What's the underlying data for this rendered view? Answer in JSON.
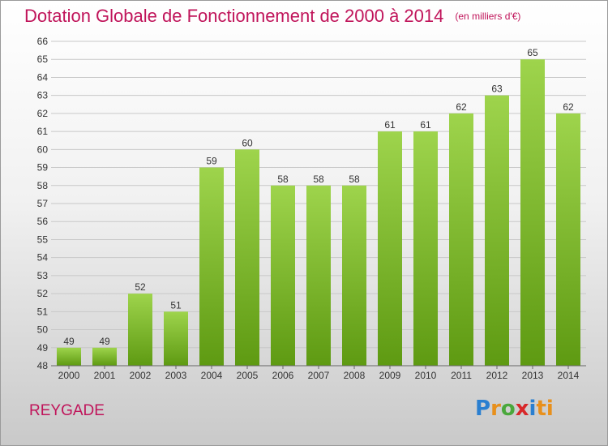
{
  "title": "Dotation Globale de Fonctionnement de 2000 à 2014",
  "subtitle": "(en milliers d'€)",
  "place": "REYGADE",
  "logo": {
    "letters": [
      "P",
      "r",
      "o",
      "x",
      "i",
      "ti"
    ]
  },
  "colors": {
    "title": "#c0145a",
    "bar_top": "#9ed44c",
    "bar_bottom": "#5e9a12",
    "grid": "#c8c8c8"
  },
  "chart_data": {
    "type": "bar",
    "title": "Dotation Globale de Fonctionnement de 2000 à 2014",
    "subtitle": "(en milliers d'€)",
    "categories": [
      "2000",
      "2001",
      "2002",
      "2003",
      "2004",
      "2005",
      "2006",
      "2007",
      "2008",
      "2009",
      "2010",
      "2011",
      "2012",
      "2013",
      "2014"
    ],
    "values": [
      49,
      49,
      52,
      51,
      59,
      60,
      58,
      58,
      58,
      61,
      61,
      62,
      63,
      65,
      62
    ],
    "xlabel": "",
    "ylabel": "",
    "ylim": [
      48,
      66
    ],
    "yticks": [
      48,
      49,
      50,
      51,
      52,
      53,
      54,
      55,
      56,
      57,
      58,
      59,
      60,
      61,
      62,
      63,
      64,
      65,
      66
    ],
    "grid": true,
    "data_labels": true
  }
}
